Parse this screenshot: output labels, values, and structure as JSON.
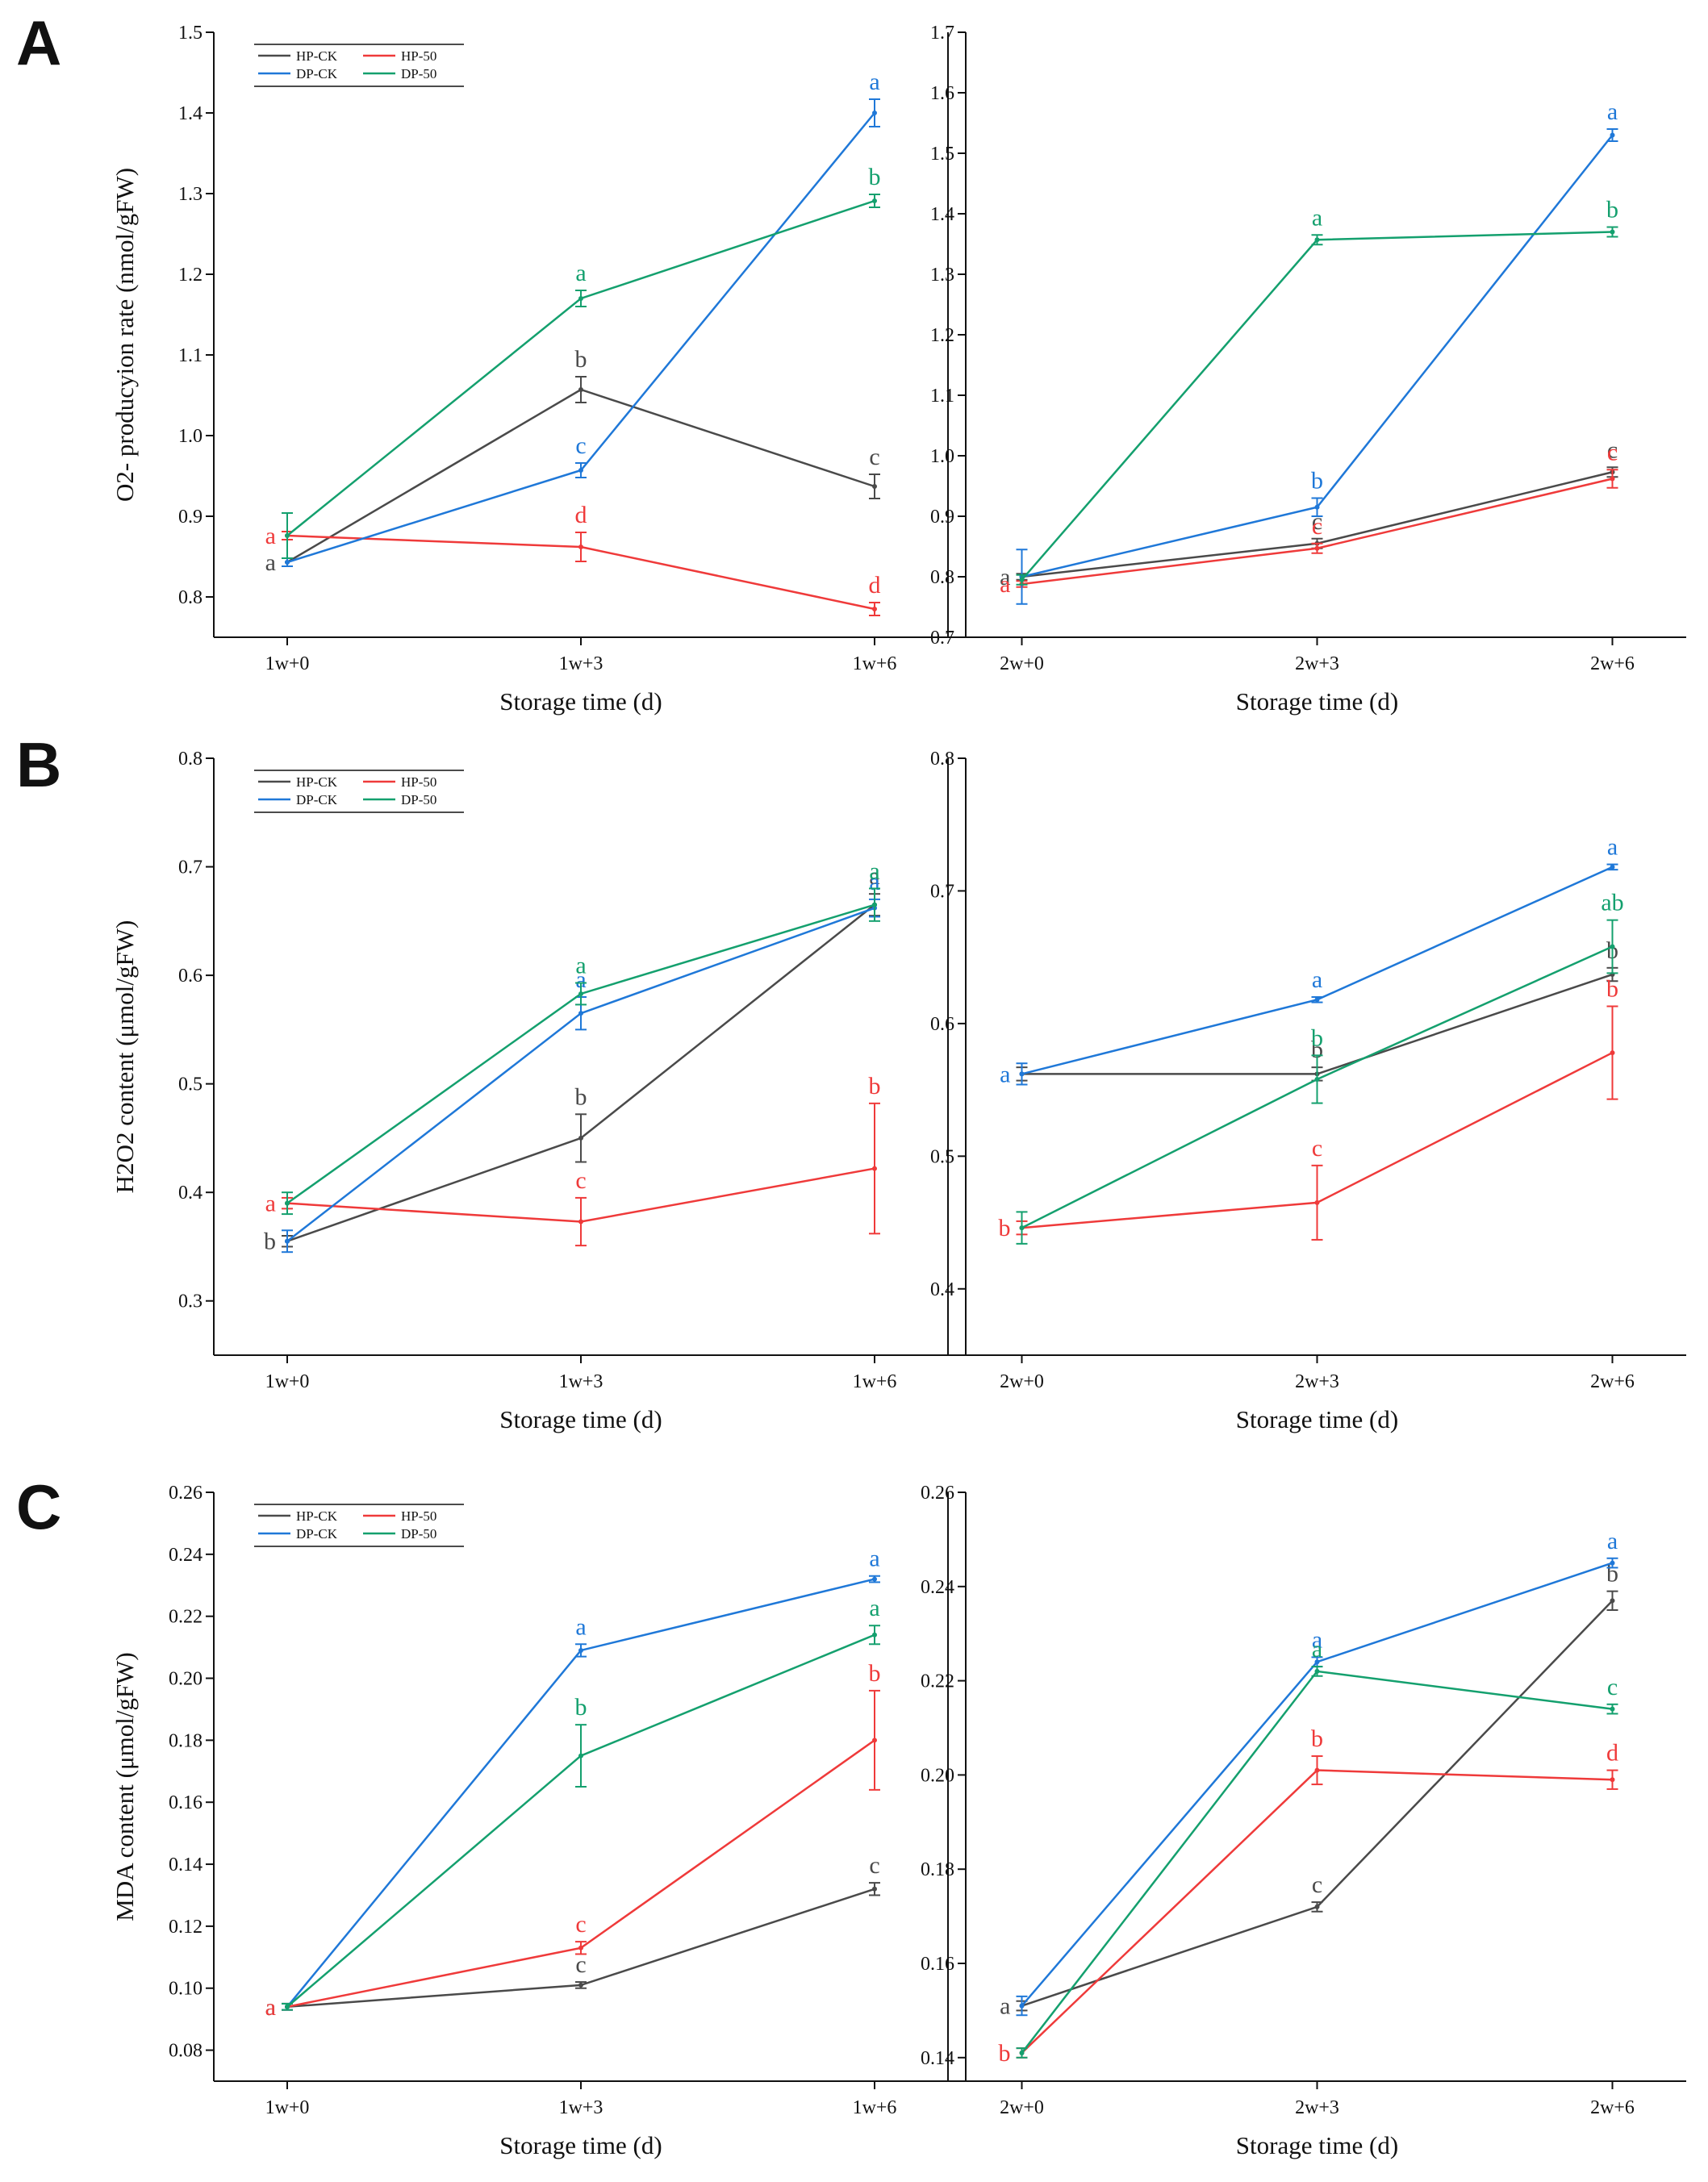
{
  "colors": {
    "HP-CK": "#4a4a4a",
    "HP-50": "#ef3a3a",
    "DP-CK": "#1f78d8",
    "DP-50": "#14a06e"
  },
  "chart_data": [
    {
      "panel": "A",
      "type": "line",
      "position": "left",
      "ylabel": "O2- producyion rate (nmol/gFW)",
      "xlabel": "Storage time (d)",
      "categories": [
        "1w+0",
        "1w+3",
        "1w+6"
      ],
      "ylim": [
        0.75,
        1.5
      ],
      "yticks": [
        0.8,
        0.9,
        1.0,
        1.1,
        1.2,
        1.3,
        1.4,
        1.5
      ],
      "legend": [
        "HP-CK",
        "HP-50",
        "DP-CK",
        "DP-50"
      ],
      "series": [
        {
          "name": "HP-CK",
          "values": [
            0.843,
            1.057,
            0.937
          ],
          "errors": [
            0.005,
            0.016,
            0.015
          ],
          "sig": [
            "a",
            "b",
            "c"
          ]
        },
        {
          "name": "HP-50",
          "values": [
            0.876,
            0.862,
            0.785
          ],
          "errors": [
            0.005,
            0.018,
            0.008
          ],
          "sig": [
            "a",
            "d",
            "d"
          ]
        },
        {
          "name": "DP-CK",
          "values": [
            0.843,
            0.957,
            1.4
          ],
          "errors": [
            0.005,
            0.009,
            0.017
          ],
          "sig": [
            "",
            "c",
            "a"
          ]
        },
        {
          "name": "DP-50",
          "values": [
            0.876,
            1.17,
            1.291
          ],
          "errors": [
            0.028,
            0.01,
            0.008
          ],
          "sig": [
            "",
            "a",
            "b"
          ]
        }
      ]
    },
    {
      "panel": "A",
      "type": "line",
      "position": "right",
      "ylabel": "",
      "xlabel": "Storage time (d)",
      "categories": [
        "2w+0",
        "2w+3",
        "2w+6"
      ],
      "ylim": [
        0.7,
        1.7
      ],
      "yticks": [
        0.7,
        0.8,
        0.9,
        1.0,
        1.1,
        1.2,
        1.3,
        1.4,
        1.5,
        1.6,
        1.7
      ],
      "legend": [],
      "series": [
        {
          "name": "HP-CK",
          "values": [
            0.8,
            0.855,
            0.973
          ],
          "errors": [
            0.005,
            0.008,
            0.008
          ],
          "sig": [
            "a",
            "c",
            "c"
          ]
        },
        {
          "name": "HP-50",
          "values": [
            0.788,
            0.847,
            0.962
          ],
          "errors": [
            0.005,
            0.008,
            0.015
          ],
          "sig": [
            "a",
            "c",
            "c"
          ]
        },
        {
          "name": "DP-CK",
          "values": [
            0.8,
            0.915,
            1.53
          ],
          "errors": [
            0.045,
            0.015,
            0.01
          ],
          "sig": [
            "",
            "b",
            "a"
          ]
        },
        {
          "name": "DP-50",
          "values": [
            0.795,
            1.357,
            1.37
          ],
          "errors": [
            0.008,
            0.008,
            0.008
          ],
          "sig": [
            "",
            "a",
            "b"
          ]
        }
      ]
    },
    {
      "panel": "B",
      "type": "line",
      "position": "left",
      "ylabel": "H2O2 content (μmol/gFW)",
      "xlabel": "Storage time (d)",
      "categories": [
        "1w+0",
        "1w+3",
        "1w+6"
      ],
      "ylim": [
        0.25,
        0.8
      ],
      "yticks": [
        0.3,
        0.4,
        0.5,
        0.6,
        0.7,
        0.8
      ],
      "legend": [
        "HP-CK",
        "HP-50",
        "DP-CK",
        "DP-50"
      ],
      "series": [
        {
          "name": "HP-CK",
          "values": [
            0.355,
            0.45,
            0.665
          ],
          "errors": [
            0.005,
            0.022,
            0.01
          ],
          "sig": [
            "b",
            "b",
            "a"
          ]
        },
        {
          "name": "HP-50",
          "values": [
            0.39,
            0.373,
            0.422
          ],
          "errors": [
            0.005,
            0.022,
            0.06
          ],
          "sig": [
            "a",
            "c",
            "b"
          ]
        },
        {
          "name": "DP-CK",
          "values": [
            0.355,
            0.565,
            0.662
          ],
          "errors": [
            0.01,
            0.015,
            0.008
          ],
          "sig": [
            "",
            "a",
            "a"
          ]
        },
        {
          "name": "DP-50",
          "values": [
            0.39,
            0.583,
            0.665
          ],
          "errors": [
            0.01,
            0.01,
            0.015
          ],
          "sig": [
            "",
            "a",
            "a"
          ]
        }
      ]
    },
    {
      "panel": "B",
      "type": "line",
      "position": "right",
      "ylabel": "",
      "xlabel": "Storage time (d)",
      "categories": [
        "2w+0",
        "2w+3",
        "2w+6"
      ],
      "ylim": [
        0.35,
        0.8
      ],
      "yticks": [
        0.4,
        0.5,
        0.6,
        0.7,
        0.8
      ],
      "legend": [],
      "series": [
        {
          "name": "HP-CK",
          "values": [
            0.562,
            0.562,
            0.637
          ],
          "errors": [
            0.005,
            0.005,
            0.005
          ],
          "sig": [
            "",
            "b",
            "b"
          ]
        },
        {
          "name": "HP-50",
          "values": [
            0.446,
            0.465,
            0.578
          ],
          "errors": [
            0.005,
            0.028,
            0.035
          ],
          "sig": [
            "b",
            "c",
            "b"
          ]
        },
        {
          "name": "DP-CK",
          "values": [
            0.562,
            0.618,
            0.718
          ],
          "errors": [
            0.008,
            0.002,
            0.002
          ],
          "sig": [
            "a",
            "a",
            "a"
          ]
        },
        {
          "name": "DP-50",
          "values": [
            0.446,
            0.558,
            0.658
          ],
          "errors": [
            0.012,
            0.018,
            0.02
          ],
          "sig": [
            "",
            "b",
            "ab"
          ]
        }
      ]
    },
    {
      "panel": "C",
      "type": "line",
      "position": "left",
      "ylabel": "MDA content (μmol/gFW)",
      "xlabel": "Storage time (d)",
      "categories": [
        "1w+0",
        "1w+3",
        "1w+6"
      ],
      "ylim": [
        0.07,
        0.26
      ],
      "yticks": [
        0.08,
        0.1,
        0.12,
        0.14,
        0.16,
        0.18,
        0.2,
        0.22,
        0.24,
        0.26
      ],
      "legend": [
        "HP-CK",
        "HP-50",
        "DP-CK",
        "DP-50"
      ],
      "series": [
        {
          "name": "HP-CK",
          "values": [
            0.094,
            0.101,
            0.132
          ],
          "errors": [
            0.001,
            0.001,
            0.002
          ],
          "sig": [
            "a",
            "c",
            "c"
          ]
        },
        {
          "name": "HP-50",
          "values": [
            0.094,
            0.113,
            0.18
          ],
          "errors": [
            0.001,
            0.002,
            0.016
          ],
          "sig": [
            "a",
            "c",
            "b"
          ]
        },
        {
          "name": "DP-CK",
          "values": [
            0.094,
            0.209,
            0.232
          ],
          "errors": [
            0.001,
            0.002,
            0.001
          ],
          "sig": [
            "",
            "a",
            "a"
          ]
        },
        {
          "name": "DP-50",
          "values": [
            0.094,
            0.175,
            0.214
          ],
          "errors": [
            0.001,
            0.01,
            0.003
          ],
          "sig": [
            "",
            "b",
            "a"
          ]
        }
      ]
    },
    {
      "panel": "C",
      "type": "line",
      "position": "right",
      "ylabel": "",
      "xlabel": "Storage time (d)",
      "categories": [
        "2w+0",
        "2w+3",
        "2w+6"
      ],
      "ylim": [
        0.135,
        0.26
      ],
      "yticks": [
        0.14,
        0.16,
        0.18,
        0.2,
        0.22,
        0.24,
        0.26
      ],
      "legend": [],
      "series": [
        {
          "name": "HP-CK",
          "values": [
            0.151,
            0.172,
            0.237
          ],
          "errors": [
            0.001,
            0.001,
            0.002
          ],
          "sig": [
            "a",
            "c",
            "b"
          ]
        },
        {
          "name": "HP-50",
          "values": [
            0.141,
            0.201,
            0.199
          ],
          "errors": [
            0.001,
            0.003,
            0.002
          ],
          "sig": [
            "b",
            "b",
            "d"
          ]
        },
        {
          "name": "DP-CK",
          "values": [
            0.151,
            0.224,
            0.245
          ],
          "errors": [
            0.002,
            0.001,
            0.001
          ],
          "sig": [
            "",
            "a",
            "a"
          ]
        },
        {
          "name": "DP-50",
          "values": [
            0.141,
            0.222,
            0.214
          ],
          "errors": [
            0.001,
            0.001,
            0.001
          ],
          "sig": [
            "",
            "a",
            "c"
          ]
        }
      ]
    }
  ]
}
